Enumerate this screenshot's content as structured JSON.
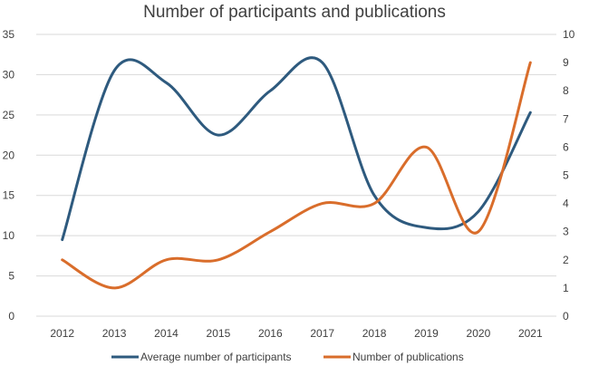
{
  "chart_data": {
    "type": "line",
    "title": "Number of participants and publications",
    "categories": [
      "2012",
      "2013",
      "2014",
      "2015",
      "2016",
      "2017",
      "2018",
      "2019",
      "2020",
      "2021"
    ],
    "y_left": {
      "min": 0,
      "max": 35,
      "ticks": [
        "0",
        "5",
        "10",
        "15",
        "20",
        "25",
        "30",
        "35"
      ]
    },
    "y_right": {
      "min": 0,
      "max": 10,
      "ticks": [
        "0",
        "1",
        "2",
        "3",
        "4",
        "5",
        "6",
        "7",
        "8",
        "9",
        "10"
      ]
    },
    "grid": true,
    "legend_position": "bottom",
    "series": [
      {
        "name": "Average number of participants",
        "axis": "left",
        "color": "#2e5a7e",
        "values": [
          9.5,
          30.5,
          29,
          22.5,
          28,
          31.5,
          15,
          11,
          13,
          25.3
        ]
      },
      {
        "name": "Number of publications",
        "axis": "right",
        "color": "#d96d2b",
        "values": [
          2,
          1,
          2,
          2,
          3,
          4,
          4,
          6,
          3,
          9
        ]
      }
    ]
  }
}
